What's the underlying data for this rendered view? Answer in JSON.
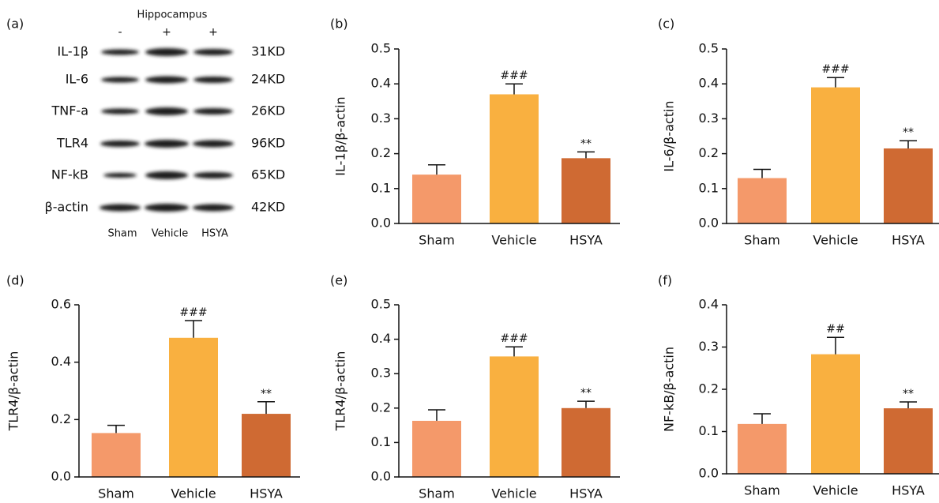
{
  "blot": {
    "panel_label": "(a)",
    "title": "Hippocampus",
    "signs": [
      "-",
      "+",
      "+"
    ],
    "proteins": [
      "IL-1β",
      "IL-6",
      "TNF-a",
      "TLR4",
      "NF-kB",
      "β-actin"
    ],
    "sizes": [
      "31KD",
      "24KD",
      "26KD",
      "96KD",
      "65KD",
      "42KD"
    ],
    "lanes": [
      "Sham",
      "Vehicle",
      "HSYA"
    ]
  },
  "chart_data": [
    {
      "type": "bar",
      "panel_label": "(b)",
      "y_label": "IL-1β/β-actin",
      "categories": [
        "Sham",
        "Vehicle",
        "HSYA"
      ],
      "values": [
        0.14,
        0.37,
        0.187
      ],
      "errors": [
        0.028,
        0.03,
        0.018
      ],
      "annotations": [
        null,
        "###",
        "**"
      ],
      "colors": [
        "#f4996a",
        "#f9b040",
        "#cf6a33"
      ],
      "ylim": [
        0,
        0.5
      ],
      "yticks": [
        {
          "value": 0,
          "label": "0.0"
        },
        0.1,
        0.2,
        0.3,
        0.4,
        0.5
      ]
    },
    {
      "type": "bar",
      "panel_label": "(c)",
      "y_label": "IL-6/β-actin",
      "categories": [
        "Sham",
        "Vehicle",
        "HSYA"
      ],
      "values": [
        0.13,
        0.39,
        0.215
      ],
      "errors": [
        0.025,
        0.028,
        0.022
      ],
      "annotations": [
        null,
        "###",
        "**"
      ],
      "colors": [
        "#f4996a",
        "#f9b040",
        "#cf6a33"
      ],
      "ylim": [
        0,
        0.5
      ],
      "yticks": [
        {
          "value": 0,
          "label": "0.0"
        },
        0.1,
        0.2,
        0.3,
        0.4,
        0.5
      ]
    },
    {
      "type": "bar",
      "panel_label": "(d)",
      "y_label": "TLR4/β-actin",
      "categories": [
        "Sham",
        "Vehicle",
        "HSYA"
      ],
      "values": [
        0.153,
        0.485,
        0.22
      ],
      "errors": [
        0.027,
        0.06,
        0.042
      ],
      "annotations": [
        null,
        "###",
        "**"
      ],
      "colors": [
        "#f4996a",
        "#f9b040",
        "#cf6a33"
      ],
      "ylim": [
        0,
        0.6
      ],
      "yticks": [
        {
          "value": 0,
          "label": "0.0"
        },
        0.2,
        0.4,
        0.6
      ]
    },
    {
      "type": "bar",
      "panel_label": "(e)",
      "y_label": "TLR4/β-actin",
      "categories": [
        "Sham",
        "Vehicle",
        "HSYA"
      ],
      "values": [
        0.163,
        0.35,
        0.2
      ],
      "errors": [
        0.032,
        0.028,
        0.02
      ],
      "annotations": [
        null,
        "###",
        "**"
      ],
      "colors": [
        "#f4996a",
        "#f9b040",
        "#cf6a33"
      ],
      "ylim": [
        0,
        0.5
      ],
      "yticks": [
        {
          "value": 0,
          "label": "0.0"
        },
        0.1,
        0.2,
        0.3,
        0.4,
        0.5
      ]
    },
    {
      "type": "bar",
      "panel_label": "(f)",
      "y_label": "NF-kB/β-actin",
      "categories": [
        "Sham",
        "Vehicle",
        "HSYA"
      ],
      "values": [
        0.118,
        0.283,
        0.155
      ],
      "errors": [
        0.024,
        0.04,
        0.015
      ],
      "annotations": [
        null,
        "##",
        "**"
      ],
      "colors": [
        "#f4996a",
        "#f9b040",
        "#cf6a33"
      ],
      "ylim": [
        0,
        0.4
      ],
      "yticks": [
        {
          "value": 0,
          "label": "0.0"
        },
        0.1,
        0.2,
        0.3,
        0.4
      ]
    }
  ]
}
